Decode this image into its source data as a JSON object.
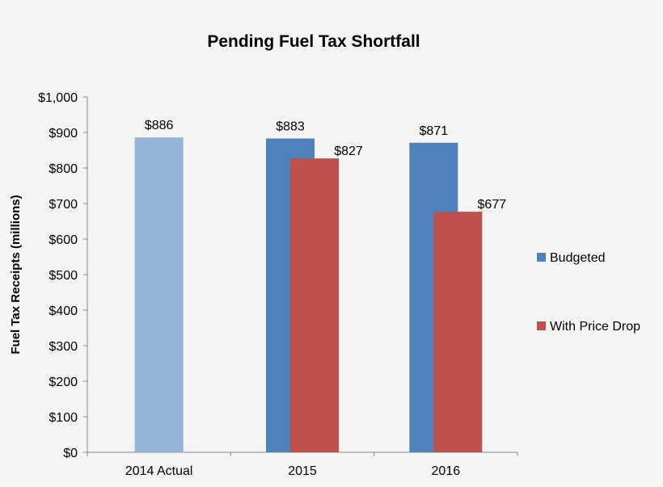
{
  "chart_data": {
    "type": "bar",
    "title": "Pending Fuel Tax Shortfall",
    "xlabel": "",
    "ylabel": "Fuel Tax Receipts (millions)",
    "ylim": [
      0,
      1000
    ],
    "yticks": [
      0,
      100,
      200,
      300,
      400,
      500,
      600,
      700,
      800,
      900,
      1000
    ],
    "ytick_labels": [
      "$0",
      "$100",
      "$200",
      "$300",
      "$400",
      "$500",
      "$600",
      "$700",
      "$800",
      "$900",
      "$1,000"
    ],
    "categories": [
      "2014 Actual",
      "2015",
      "2016"
    ],
    "grid": false,
    "legend_position": "right",
    "actual": {
      "category": "2014 Actual",
      "value": 886,
      "label": "$886",
      "color": "#95b3d7"
    },
    "series": [
      {
        "name": "Budgeted",
        "color": "#4f81bd",
        "values": [
          null,
          883,
          871
        ],
        "labels": [
          null,
          "$883",
          "$871"
        ]
      },
      {
        "name": "With Price Drop",
        "color": "#c0504d",
        "values": [
          null,
          827,
          677
        ],
        "labels": [
          null,
          "$827",
          "$677"
        ]
      }
    ]
  }
}
